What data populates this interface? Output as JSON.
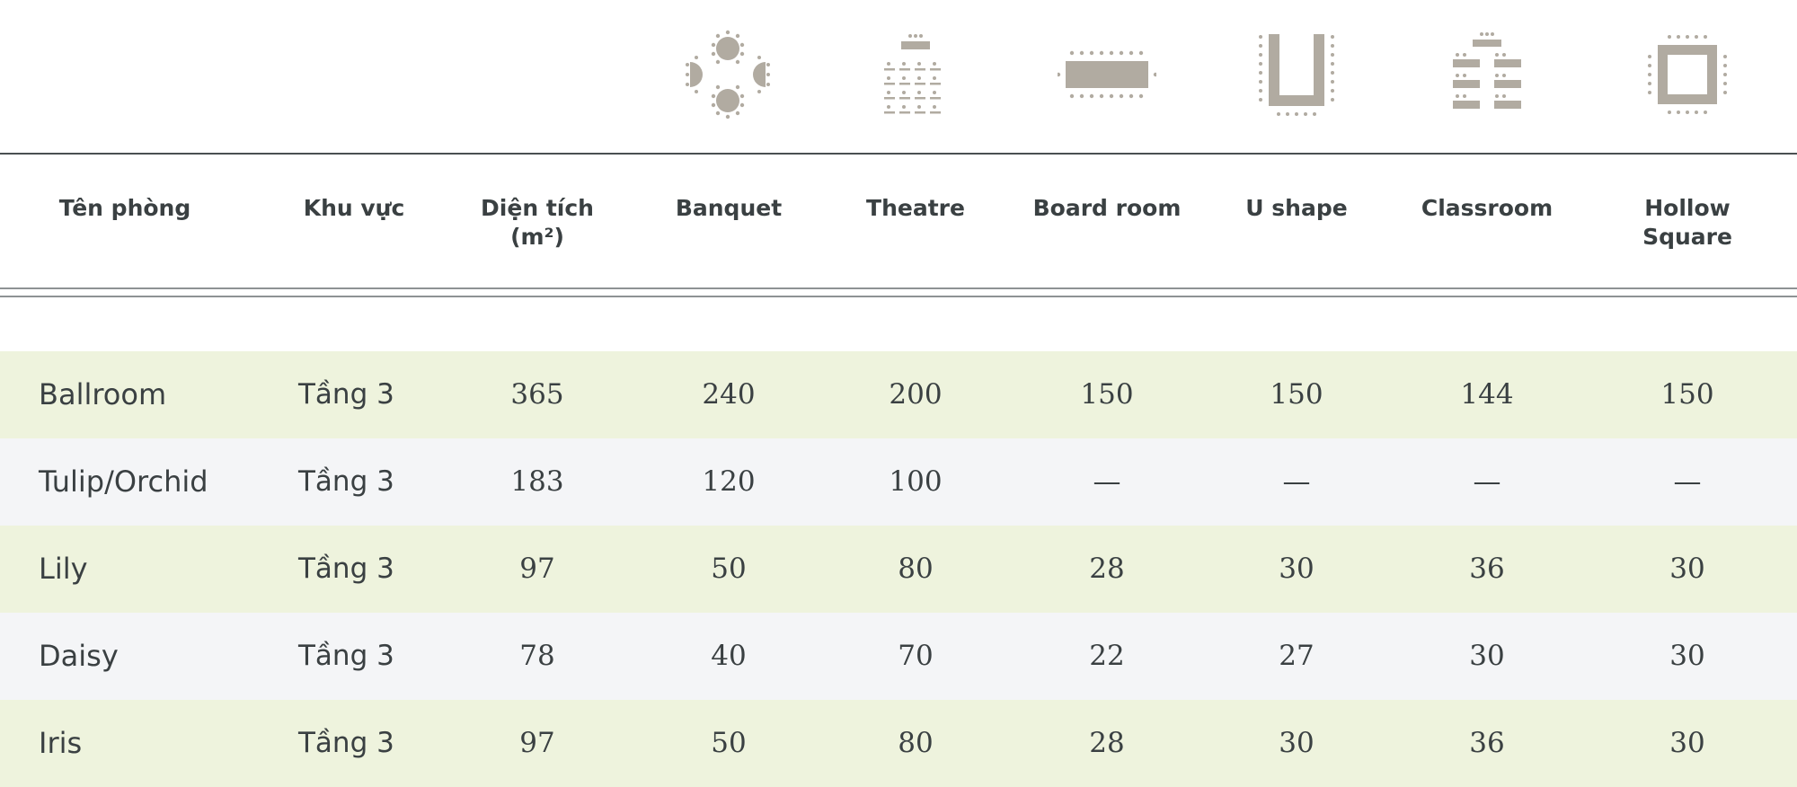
{
  "icons": [
    {
      "layout": "banquet",
      "icon": "banquet-layout-icon"
    },
    {
      "layout": "theatre",
      "icon": "theatre-layout-icon"
    },
    {
      "layout": "board-room",
      "icon": "board-room-layout-icon"
    },
    {
      "layout": "u-shape",
      "icon": "u-shape-layout-icon"
    },
    {
      "layout": "classroom",
      "icon": "classroom-layout-icon"
    },
    {
      "layout": "hollow-square",
      "icon": "hollow-square-layout-icon"
    }
  ],
  "colors": {
    "icon_gray": "#b1aba1",
    "row_green": "#eef3dd",
    "row_gray": "#f4f5f7",
    "text": "#3a4042"
  },
  "headers": {
    "room": "Tên phòng",
    "area": "Khu vực",
    "size": "Diện tích\n(m²)",
    "banquet": "Banquet",
    "theatre": "Theatre",
    "boardroom": "Board room",
    "ushape": "U shape",
    "classroom": "Classroom",
    "hollow": "Hollow Square"
  },
  "rows": [
    {
      "room": "Ballroom",
      "area": "Tầng 3",
      "size": "365",
      "banquet": "240",
      "theatre": "200",
      "boardroom": "150",
      "ushape": "150",
      "classroom": "144",
      "hollow": "150"
    },
    {
      "room": "Tulip/Orchid",
      "area": "Tầng 3",
      "size": "183",
      "banquet": "120",
      "theatre": "100",
      "boardroom": "—",
      "ushape": "—",
      "classroom": "—",
      "hollow": "—"
    },
    {
      "room": "Lily",
      "area": "Tầng 3",
      "size": "97",
      "banquet": "50",
      "theatre": "80",
      "boardroom": "28",
      "ushape": "30",
      "classroom": "36",
      "hollow": "30"
    },
    {
      "room": "Daisy",
      "area": "Tầng 3",
      "size": "78",
      "banquet": "40",
      "theatre": "70",
      "boardroom": "22",
      "ushape": "27",
      "classroom": "30",
      "hollow": "30"
    },
    {
      "room": "Iris",
      "area": "Tầng 3",
      "size": "97",
      "banquet": "50",
      "theatre": "80",
      "boardroom": "28",
      "ushape": "30",
      "classroom": "36",
      "hollow": "30"
    }
  ]
}
